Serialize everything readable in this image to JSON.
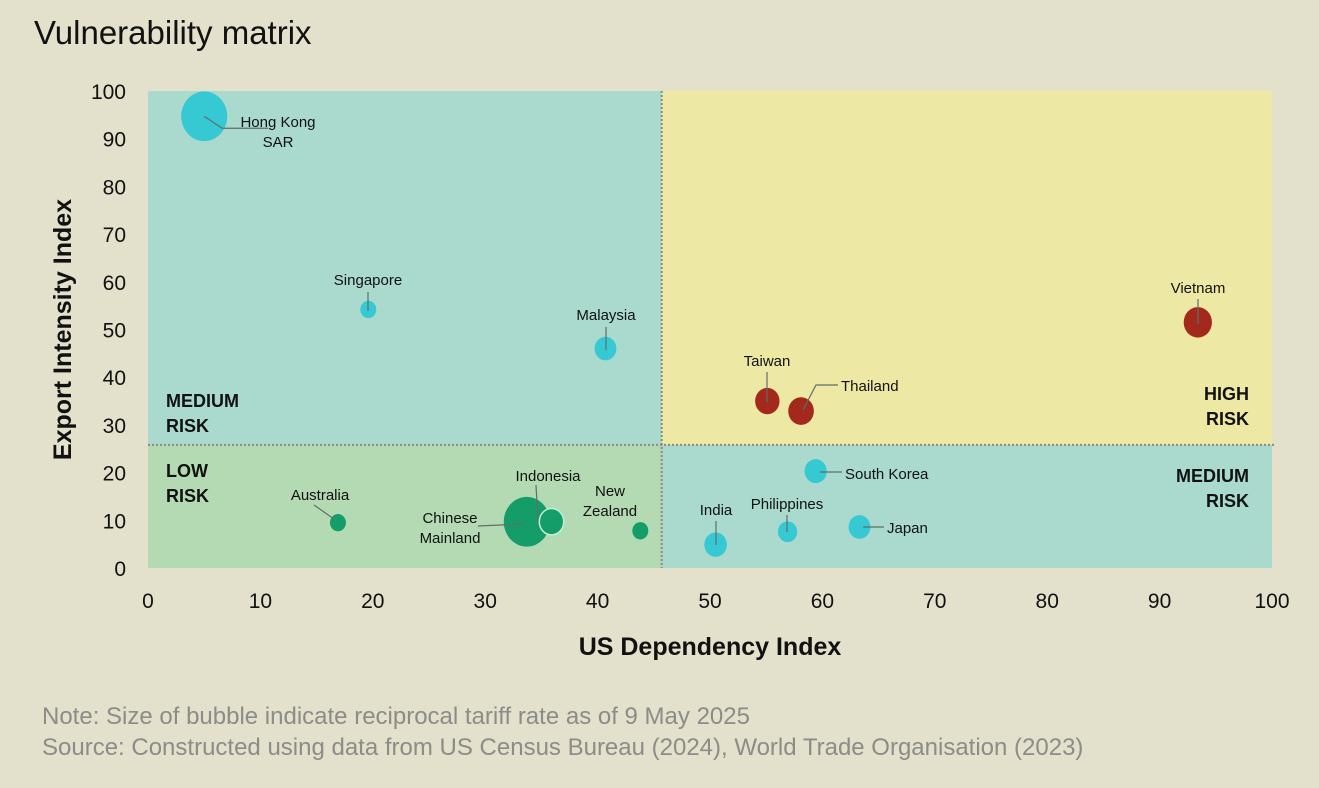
{
  "chart_data": {
    "type": "scatter",
    "subtype": "bubble",
    "title": "Vulnerability matrix",
    "xlabel": "US Dependency Index",
    "ylabel": "Export Intensity Index",
    "xlim": [
      0,
      100
    ],
    "ylim": [
      0,
      100
    ],
    "xticks": [
      "0",
      "10",
      "20",
      "30",
      "40",
      "50",
      "60",
      "70",
      "80",
      "90",
      "100"
    ],
    "yticks": [
      "0",
      "10",
      "20",
      "30",
      "40",
      "50",
      "60",
      "70",
      "80",
      "90",
      "100"
    ],
    "grid": false,
    "size_meaning": "reciprocal tariff rate (%)",
    "thresholds": {
      "x": 45.7,
      "y": 25.8
    },
    "quadrants": [
      {
        "label_lines": [
          "MEDIUM",
          "RISK"
        ],
        "position": "top-left",
        "color": "#A9DACD"
      },
      {
        "label_lines": [
          "HIGH",
          "RISK"
        ],
        "position": "top-right",
        "color": "#EEE8A5"
      },
      {
        "label_lines": [
          "LOW",
          "RISK"
        ],
        "position": "bottom-left",
        "color": "#B3DAB2"
      },
      {
        "label_lines": [
          "MEDIUM",
          "RISK"
        ],
        "position": "bottom-right",
        "color": "#A9DACD"
      }
    ],
    "colors": {
      "medium": "#36C8D3",
      "high": "#A2291B",
      "low": "#149C69"
    },
    "points": [
      {
        "name": [
          "Hong Kong",
          "SAR"
        ],
        "x": 5.0,
        "y": 94.7,
        "size": 145,
        "risk": "medium"
      },
      {
        "name": [
          "Singapore"
        ],
        "x": 19.6,
        "y": 54.2,
        "size": 10,
        "risk": "medium"
      },
      {
        "name": [
          "Malaysia"
        ],
        "x": 40.7,
        "y": 46.0,
        "size": 24,
        "risk": "medium"
      },
      {
        "name": [
          "Taiwan"
        ],
        "x": 55.1,
        "y": 35.0,
        "size": 32,
        "risk": "high"
      },
      {
        "name": [
          "Thailand"
        ],
        "x": 58.1,
        "y": 32.9,
        "size": 36,
        "risk": "high"
      },
      {
        "name": [
          "Vietnam"
        ],
        "x": 93.4,
        "y": 51.5,
        "size": 46,
        "risk": "high"
      },
      {
        "name": [
          "South Korea"
        ],
        "x": 59.4,
        "y": 20.3,
        "size": 25,
        "risk": "medium"
      },
      {
        "name": [
          "Japan"
        ],
        "x": 63.3,
        "y": 8.6,
        "size": 24,
        "risk": "medium"
      },
      {
        "name": [
          "Philippines"
        ],
        "x": 56.9,
        "y": 7.6,
        "size": 17,
        "risk": "medium"
      },
      {
        "name": [
          "India"
        ],
        "x": 50.5,
        "y": 4.9,
        "size": 26,
        "risk": "medium"
      },
      {
        "name": [
          "Australia"
        ],
        "x": 16.9,
        "y": 9.5,
        "size": 10,
        "risk": "low"
      },
      {
        "name": [
          "Chinese",
          "Mainland"
        ],
        "x": 33.7,
        "y": 9.7,
        "size": 145,
        "risk": "low"
      },
      {
        "name": [
          "Indonesia"
        ],
        "x": 35.9,
        "y": 9.7,
        "size": 32,
        "risk": "low"
      },
      {
        "name": [
          "New",
          "Zealand"
        ],
        "x": 43.8,
        "y": 7.8,
        "size": 10,
        "risk": "low"
      }
    ]
  },
  "notes": {
    "note": "Note: Size of bubble indicate reciprocal tariff rate as of 9 May 2025",
    "source": "Source: Constructed using data from US Census Bureau (2024), World Trade Organisation (2023)"
  }
}
